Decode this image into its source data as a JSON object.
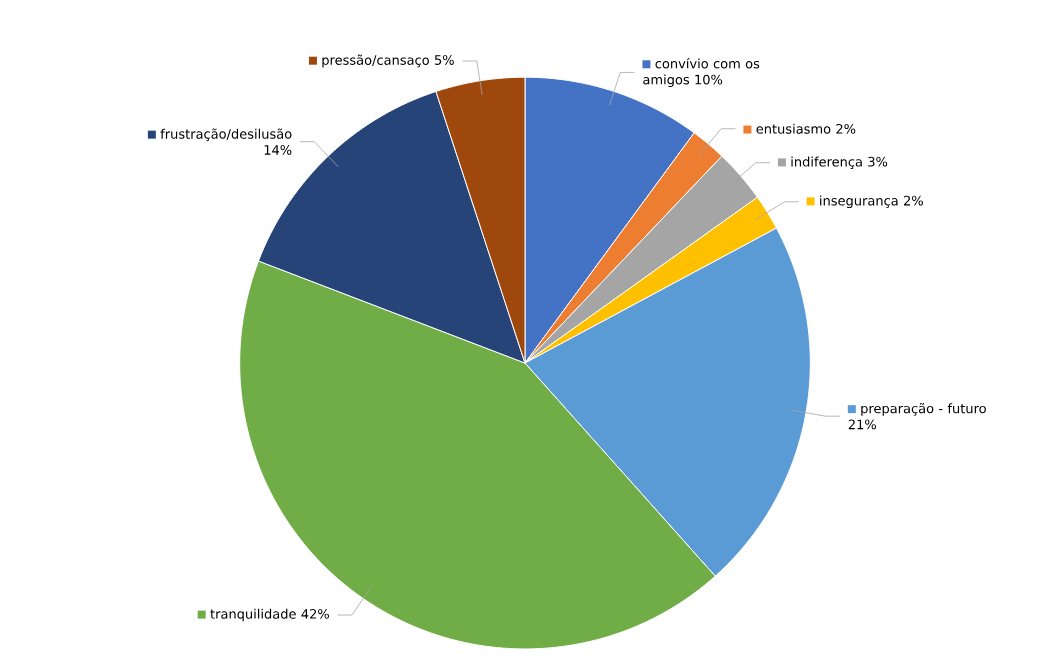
{
  "chart_data": {
    "type": "pie",
    "categories": [
      "convívio com os amigos",
      "entusiasmo",
      "indiferença",
      "insegurança",
      "preparação - futuro",
      "tranquilidade",
      "frustração/desilusão",
      "pressão/cansaço"
    ],
    "values": [
      10,
      2,
      3,
      2,
      21,
      42,
      14,
      5
    ],
    "value_labels": [
      "10%",
      "2%",
      "3%",
      "2%",
      "21%",
      "42%",
      "14%",
      "5%"
    ],
    "colors": [
      "#4472c4",
      "#ed7d31",
      "#a5a5a5",
      "#ffc000",
      "#5b9bd5",
      "#70ad47",
      "#264478",
      "#9e480e"
    ],
    "legend": "right"
  }
}
